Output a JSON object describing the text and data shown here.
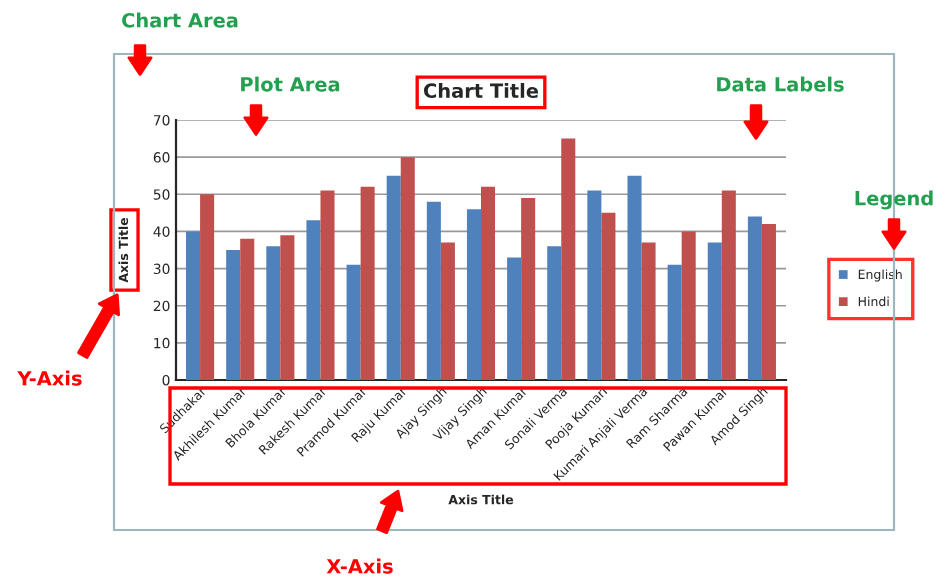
{
  "chart_data": {
    "type": "bar",
    "title": "Chart Title",
    "xlabel": "Axis Title",
    "ylabel": "Axis Title",
    "categories": [
      "Sudhakar",
      "Akhilesh Kumar",
      "Bhola Kumar",
      "Rakesh Kumar",
      "Pramod Kumar",
      "Raju Kumar",
      "Ajay Singh",
      "Vijay Singh",
      "Aman Kumar",
      "Sonali Verma",
      "Pooja Kumari",
      "Kumari Anjali Verma",
      "Ram Sharma",
      "Pawan Kumar",
      "Amod Singh"
    ],
    "series": [
      {
        "name": "English",
        "color": "#4f81bd",
        "values": [
          40,
          35,
          36,
          43,
          31,
          55,
          48,
          46,
          33,
          36,
          51,
          55,
          31,
          37,
          44
        ]
      },
      {
        "name": "Hindi",
        "color": "#c0504d",
        "values": [
          50,
          38,
          39,
          51,
          52,
          60,
          37,
          52,
          49,
          65,
          45,
          37,
          40,
          51,
          42
        ]
      }
    ],
    "ylim": [
      0,
      70
    ],
    "yticks": [
      0,
      10,
      20,
      30,
      40,
      50,
      60,
      70
    ],
    "grid": "y",
    "legend": "right",
    "annotations": [
      "Chart Area",
      "Plot Area",
      "Data Labels",
      "Legend",
      "Y-Axis",
      "X-Axis"
    ]
  }
}
